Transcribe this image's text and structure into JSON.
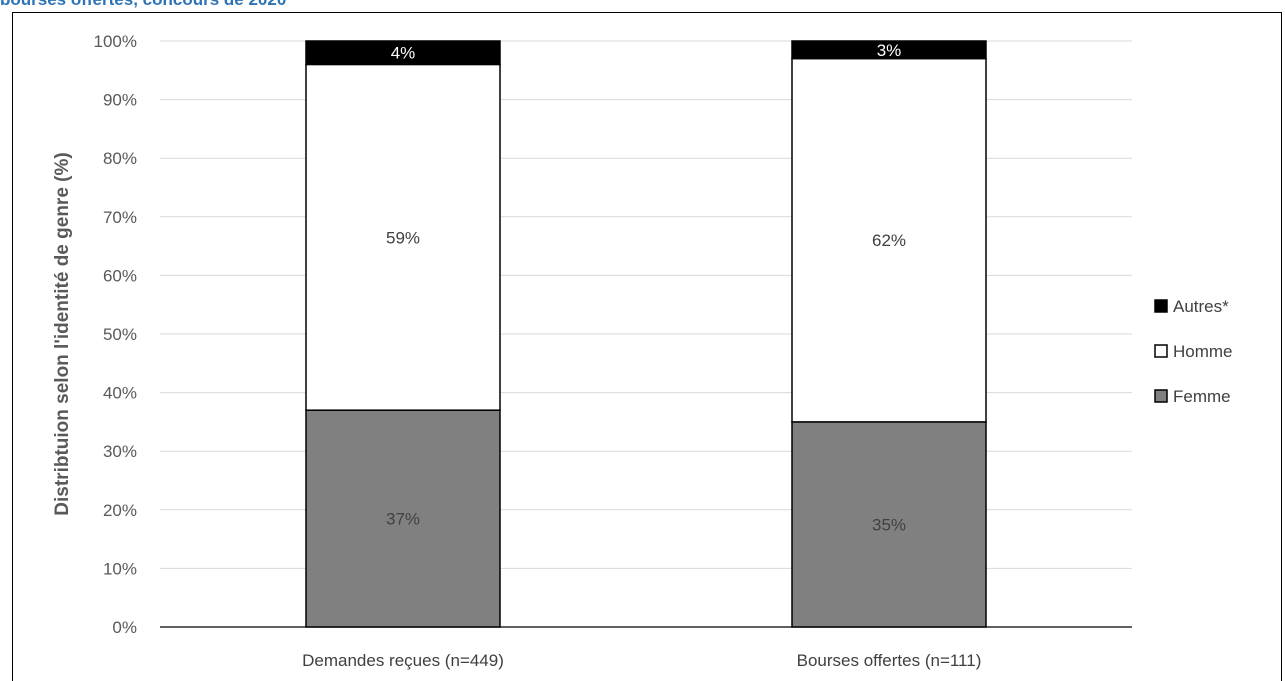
{
  "heading": "bourses offertes, concours de 2020",
  "chart_data": {
    "type": "bar",
    "stacked": true,
    "categories": [
      "Demandes reçues (n=449)",
      "Bourses offertes (n=111)"
    ],
    "series": [
      {
        "name": "Femme",
        "values": [
          37,
          35
        ],
        "labels": [
          "37%",
          "35%"
        ],
        "color": "#808080",
        "label_color": "#404040"
      },
      {
        "name": "Homme",
        "values": [
          59,
          62
        ],
        "labels": [
          "59%",
          "62%"
        ],
        "color": "#ffffff",
        "label_color": "#404040"
      },
      {
        "name": "Autres*",
        "values": [
          4,
          3
        ],
        "labels": [
          "4%",
          "3%"
        ],
        "color": "#000000",
        "label_color": "#ffffff"
      }
    ],
    "ylabel": "Distribtuion selon l'identité de genre (%)",
    "ylim": [
      0,
      100
    ],
    "yticks": [
      "0%",
      "10%",
      "20%",
      "30%",
      "40%",
      "50%",
      "60%",
      "70%",
      "80%",
      "90%",
      "100%"
    ],
    "grid": true,
    "legend_position": "right",
    "legend_order": [
      "Autres*",
      "Homme",
      "Femme"
    ]
  }
}
